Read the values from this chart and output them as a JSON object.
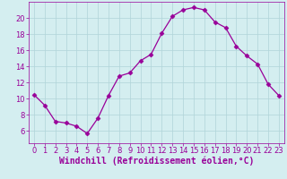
{
  "x": [
    0,
    1,
    2,
    3,
    4,
    5,
    6,
    7,
    8,
    9,
    10,
    11,
    12,
    13,
    14,
    15,
    16,
    17,
    18,
    19,
    20,
    21,
    22,
    23
  ],
  "y": [
    10.5,
    9.2,
    7.2,
    7.0,
    6.6,
    5.7,
    7.6,
    10.4,
    12.8,
    13.2,
    14.7,
    15.5,
    18.1,
    20.2,
    21.0,
    21.3,
    21.0,
    19.5,
    18.8,
    16.5,
    15.3,
    14.3,
    11.8,
    10.4
  ],
  "line_color": "#990099",
  "marker": "D",
  "marker_size": 2.5,
  "bg_color": "#d4eef0",
  "grid_color": "#b0d4d8",
  "xlabel": "Windchill (Refroidissement éolien,°C)",
  "xlabel_color": "#990099",
  "xlabel_fontsize": 7,
  "tick_color": "#990099",
  "tick_fontsize": 6,
  "xlim": [
    -0.5,
    23.5
  ],
  "ylim": [
    4.5,
    22.0
  ],
  "yticks": [
    6,
    8,
    10,
    12,
    14,
    16,
    18,
    20
  ],
  "xticks": [
    0,
    1,
    2,
    3,
    4,
    5,
    6,
    7,
    8,
    9,
    10,
    11,
    12,
    13,
    14,
    15,
    16,
    17,
    18,
    19,
    20,
    21,
    22,
    23
  ]
}
